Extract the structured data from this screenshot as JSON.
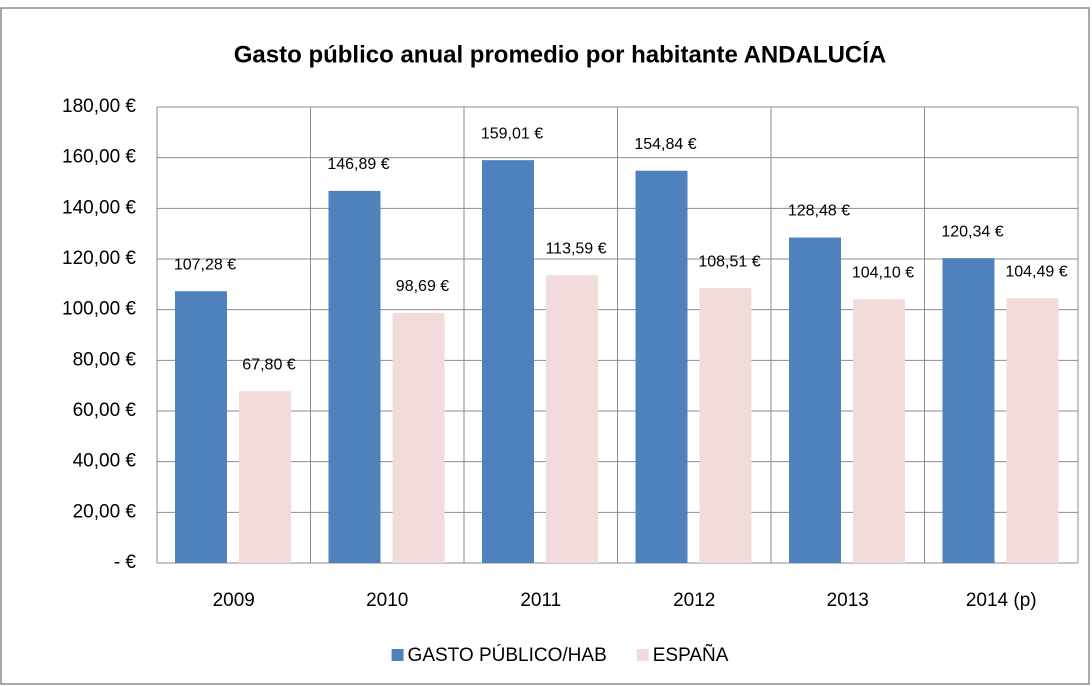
{
  "chart_data": {
    "type": "bar",
    "title": "Gasto público anual promedio por habitante ANDALUCÍA",
    "categories": [
      "2009",
      "2010",
      "2011",
      "2012",
      "2013",
      "2014 (p)"
    ],
    "series": [
      {
        "name": "GASTO PÚBLICO/HAB",
        "color": "#4f81bd",
        "values": [
          107.28,
          146.89,
          159.01,
          154.84,
          128.48,
          120.34
        ],
        "value_labels": [
          "107,28 €",
          "146,89 €",
          "159,01 €",
          "154,84 €",
          "128,48 €",
          "120,34 €"
        ]
      },
      {
        "name": "ESPAÑA",
        "color": "#f2dcdb",
        "values": [
          67.8,
          98.69,
          113.59,
          108.51,
          104.1,
          104.49
        ],
        "value_labels": [
          "67,80 €",
          "98,69 €",
          "113,59 €",
          "108,51 €",
          "104,10 €",
          "104,49 €"
        ]
      }
    ],
    "ylim": [
      0,
      180
    ],
    "yticks": [
      {
        "value": 0,
        "label": "-   €"
      },
      {
        "value": 20,
        "label": "20,00 €"
      },
      {
        "value": 40,
        "label": "40,00 €"
      },
      {
        "value": 60,
        "label": "60,00 €"
      },
      {
        "value": 80,
        "label": "80,00 €"
      },
      {
        "value": 100,
        "label": "100,00 €"
      },
      {
        "value": 120,
        "label": "120,00 €"
      },
      {
        "value": 140,
        "label": "140,00 €"
      },
      {
        "value": 160,
        "label": "160,00 €"
      },
      {
        "value": 180,
        "label": "180,00 €"
      }
    ],
    "grid": true,
    "legend": "bottom"
  }
}
